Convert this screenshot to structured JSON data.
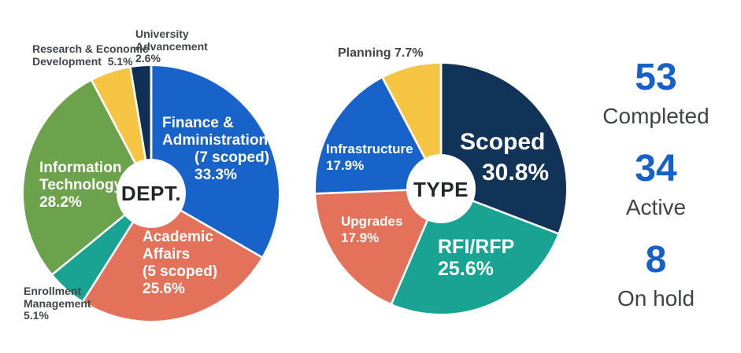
{
  "chart_data": [
    {
      "type": "pie",
      "variant": "donut",
      "center_label": "DEPT.",
      "legend_position": "on-chart",
      "segments": [
        {
          "label": "Finance & Administration",
          "sublabel": "(7 scoped)",
          "value": 33.3,
          "pct": "33.3%",
          "color": "#1763C9",
          "lines": [
            "Finance &",
            "Administration",
            "(7 scoped)",
            "33.3%"
          ]
        },
        {
          "label": "Academic Affairs",
          "sublabel": "(5 scoped)",
          "value": 25.6,
          "pct": "25.6%",
          "color": "#E2725A",
          "lines": [
            "Academic",
            "Affairs",
            "(5 scoped)",
            "25.6%"
          ]
        },
        {
          "label": "Enrollment Management",
          "value": 5.1,
          "pct": "5.1%",
          "color": "#19A392",
          "lines": [
            "Enrollment",
            "Management",
            "5.1%"
          ]
        },
        {
          "label": "Information Technology",
          "value": 28.2,
          "pct": "28.2%",
          "color": "#6CA24C",
          "lines": [
            "Information",
            "Technology",
            "28.2%"
          ]
        },
        {
          "label": "Research & Economic Development",
          "value": 5.1,
          "pct": "5.1%",
          "color": "#F5C443",
          "lines": [
            "Research & Economic",
            "Development  5.1%"
          ]
        },
        {
          "label": "University Advancement",
          "value": 2.6,
          "pct": "2.6%",
          "color": "#102F54",
          "lines": [
            "University",
            "Advancement",
            "2.6%"
          ]
        }
      ]
    },
    {
      "type": "pie",
      "variant": "donut",
      "center_label": "TYPE",
      "legend_position": "on-chart",
      "segments": [
        {
          "label": "Scoped",
          "value": 30.8,
          "pct": "30.8%",
          "color": "#123358",
          "lines": [
            "Scoped",
            "30.8%"
          ]
        },
        {
          "label": "RFI/RFP",
          "value": 25.6,
          "pct": "25.6%",
          "color": "#19A392",
          "lines": [
            "RFI/RFP",
            "25.6%"
          ]
        },
        {
          "label": "Upgrades",
          "value": 17.9,
          "pct": "17.9%",
          "color": "#E2725A",
          "lines": [
            "Upgrades",
            "17.9%"
          ]
        },
        {
          "label": "Infrastructure",
          "value": 17.9,
          "pct": "17.9%",
          "color": "#1763C9",
          "lines": [
            "Infrastructure",
            "17.9%"
          ]
        },
        {
          "label": "Planning",
          "value": 7.7,
          "pct": "7.7%",
          "color": "#F5C443",
          "lines": [
            "Planning 7.7%"
          ]
        }
      ]
    }
  ],
  "stats": [
    {
      "value": "53",
      "label": "Completed"
    },
    {
      "value": "34",
      "label": "Active"
    },
    {
      "value": "8",
      "label": "On hold"
    }
  ],
  "colors": {
    "stat_number": "#1660C9",
    "outside_label": "#414549",
    "inside_label": "#FFFFFF",
    "center_label": "#232629",
    "background": "#FFFFFF",
    "slice_divider": "#FFFFFF"
  }
}
